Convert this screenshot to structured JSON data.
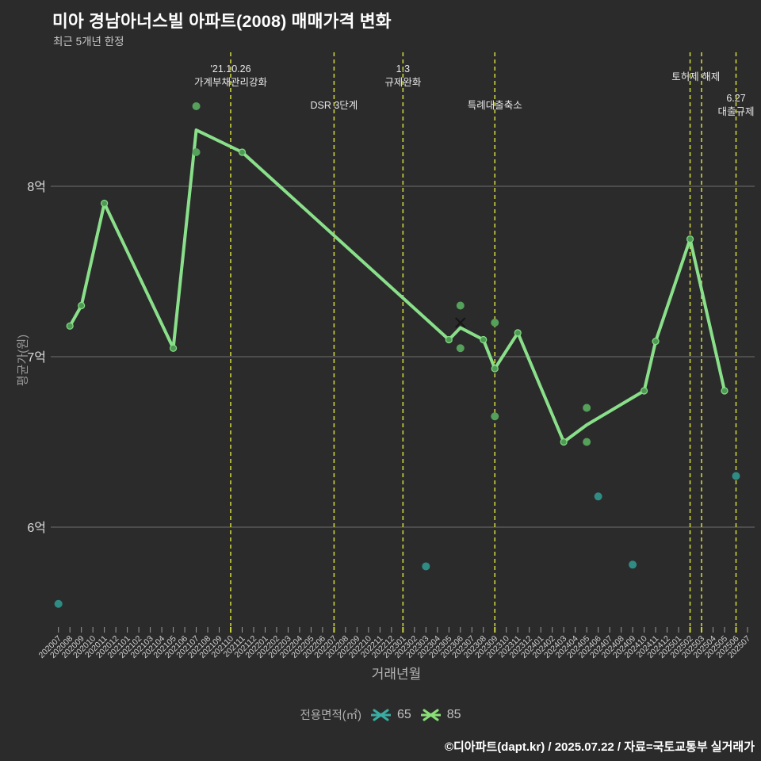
{
  "header": {
    "title": "미아 경남아너스빌 아파트(2008) 매매가격 변화",
    "subtitle": "최근 5개년 한정"
  },
  "chart_data": {
    "type": "line",
    "title": "미아 경남아너스빌 아파트(2008) 매매가격 변화",
    "xlabel": "거래년월",
    "ylabel": "평균가(원)",
    "grid": "horizontal",
    "y_unit": "억",
    "ylim_eok": [
      5.4,
      8.8
    ],
    "y_gridlines": [
      {
        "value": 6,
        "label": "6억"
      },
      {
        "value": 7,
        "label": "7억"
      },
      {
        "value": 8,
        "label": "8억"
      }
    ],
    "months": [
      "202007",
      "202008",
      "202009",
      "202010",
      "202011",
      "202012",
      "202101",
      "202102",
      "202103",
      "202104",
      "202105",
      "202106",
      "202107",
      "202108",
      "202109",
      "202110",
      "202111",
      "202112",
      "202201",
      "202202",
      "202203",
      "202204",
      "202205",
      "202206",
      "202207",
      "202208",
      "202209",
      "202210",
      "202211",
      "202212",
      "202301",
      "202302",
      "202303",
      "202304",
      "202305",
      "202306",
      "202307",
      "202308",
      "202309",
      "202310",
      "202311",
      "202312",
      "202401",
      "202402",
      "202403",
      "202404",
      "202405",
      "202406",
      "202407",
      "202408",
      "202409",
      "202410",
      "202411",
      "202412",
      "202501",
      "202502",
      "202503",
      "202504",
      "202505",
      "202506",
      "202507"
    ],
    "highlight_months": [
      "202110",
      "202207",
      "202301",
      "202309",
      "202502",
      "202503",
      "202506"
    ],
    "series": [
      {
        "name": "65",
        "type": "scatter",
        "color": "#2f8c84",
        "points": [
          [
            "202007",
            5.55
          ],
          [
            "202303",
            5.77
          ],
          [
            "202406",
            6.18
          ],
          [
            "202409",
            5.78
          ],
          [
            "202506",
            6.3
          ]
        ]
      },
      {
        "name": "85",
        "type": "line",
        "color": "#8ae08a",
        "avg_points": [
          [
            "202008",
            7.18
          ],
          [
            "202009",
            7.3
          ],
          [
            "202011",
            7.9
          ],
          [
            "202105",
            7.05
          ],
          [
            "202107",
            8.33
          ],
          [
            "202111",
            8.2
          ],
          [
            "202305",
            7.1
          ],
          [
            "202306",
            7.17
          ],
          [
            "202308",
            7.1
          ],
          [
            "202309",
            6.93
          ],
          [
            "202311",
            7.14
          ],
          [
            "202403",
            6.5
          ],
          [
            "202405",
            6.6
          ],
          [
            "202410",
            6.8
          ],
          [
            "202411",
            7.09
          ],
          [
            "202502",
            7.69
          ],
          [
            "202505",
            6.8
          ]
        ],
        "no_marker_months": [
          "202107",
          "202306",
          "202405"
        ],
        "transactions": [
          [
            "202107",
            8.47
          ],
          [
            "202107",
            8.2
          ],
          [
            "202306",
            7.3
          ],
          [
            "202306",
            7.05
          ],
          [
            "202309",
            7.2
          ],
          [
            "202309",
            6.65
          ],
          [
            "202405",
            6.7
          ],
          [
            "202405",
            6.5
          ]
        ]
      }
    ],
    "x_marker": {
      "month": "202306",
      "value": 7.2
    },
    "annotations": [
      {
        "months": [
          "202110"
        ],
        "lines": [
          "'21.10.26",
          "가계부채관리강화"
        ],
        "tier": "top"
      },
      {
        "months": [
          "202207"
        ],
        "lines": [
          "DSR 3단계"
        ],
        "tier": "bottom"
      },
      {
        "months": [
          "202301"
        ],
        "lines": [
          "1.3",
          "규제완화"
        ],
        "tier": "top"
      },
      {
        "months": [
          "202309"
        ],
        "lines": [
          "특례대출축소"
        ],
        "tier": "bottom"
      },
      {
        "months": [
          "202502",
          "202503"
        ],
        "lines": [
          "토허제 해제"
        ],
        "tier": "top"
      },
      {
        "months": [
          "202506"
        ],
        "lines": [
          "6.27",
          "대출규제"
        ],
        "tier": "bottom"
      }
    ],
    "colors": {
      "background": "#2b2b2b",
      "grid": "#6f6f6f",
      "event_line": "#ccd23d",
      "line85": "#8ae08a",
      "marker85_fill": "#4e9a55",
      "dot85": "#55a05a",
      "dot65": "#2f8c84",
      "x_marker": "#161616",
      "tick": "#9a9a9a",
      "tick_text": "#d2d2d2",
      "annotation_text": "#e8e8e8",
      "y_tick_text": "#dcdcdc"
    }
  },
  "legend": {
    "label": "전용면적(㎡)",
    "items": [
      {
        "label": "65",
        "color": "#3aaca2"
      },
      {
        "label": "85",
        "color": "#8ade77"
      }
    ]
  },
  "footer": {
    "credit": "©디아파트(dapt.kr) / 2025.07.22 / 자료=국토교통부 실거래가"
  }
}
